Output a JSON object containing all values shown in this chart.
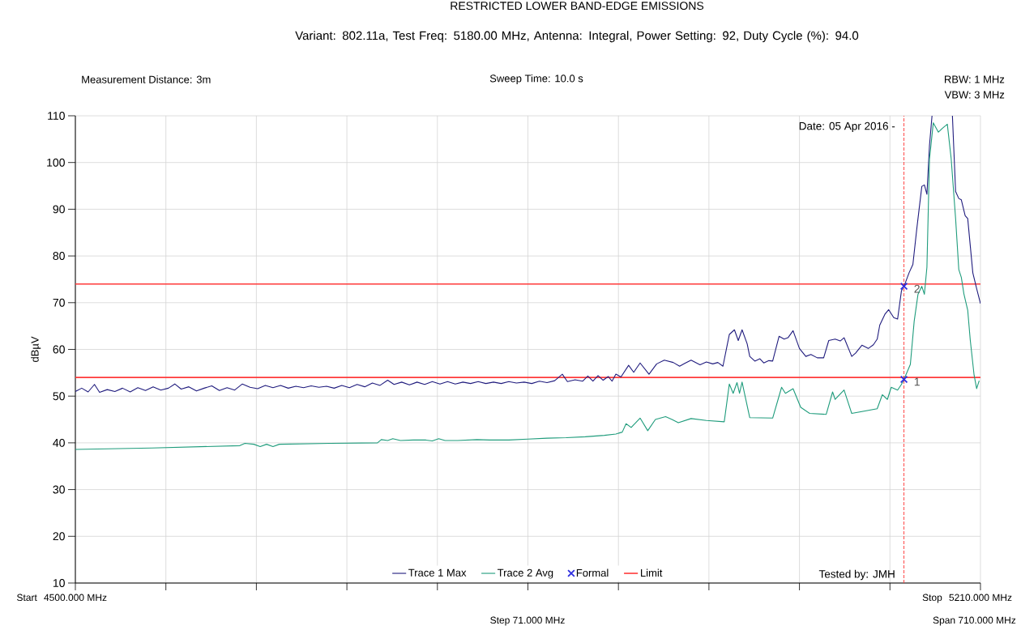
{
  "chart_data": {
    "type": "line",
    "title": "RESTRICTED LOWER BAND-EDGE EMISSIONS",
    "subtitle": "Variant: 802.11a, Test Freq: 5180.00 MHz, Antenna: Integral, Power Setting: 92, Duty Cycle (%): 94.0",
    "ylabel": "dBµV",
    "xlim": [
      4500,
      5210
    ],
    "ylim": [
      10,
      110
    ],
    "xticks": [
      {
        "value": 4500,
        "label": "4500.000 MHz"
      },
      {
        "value": 4571,
        "label": null
      },
      {
        "value": 4642,
        "label": null
      },
      {
        "value": 4713,
        "label": null
      },
      {
        "value": 4784,
        "label": null
      },
      {
        "value": 4855,
        "label": null
      },
      {
        "value": 4926,
        "label": null
      },
      {
        "value": 4997,
        "label": null
      },
      {
        "value": 5068,
        "label": null
      },
      {
        "value": 5139,
        "label": null
      },
      {
        "value": 5210,
        "label": "5210.000 MHz"
      }
    ],
    "yticks": [
      10,
      20,
      30,
      40,
      50,
      60,
      70,
      80,
      90,
      100,
      110
    ],
    "grid": true,
    "legend": "bottom",
    "series": [
      {
        "name": "Trace 1 Max",
        "color": "#201c7e",
        "x": [
          4500,
          4505,
          4510,
          4515,
          4519,
          4525,
          4531,
          4537,
          4543,
          4549,
          4555,
          4561,
          4567,
          4573,
          4578,
          4583,
          4589,
          4595,
          4601,
          4607,
          4613,
          4619,
          4625,
          4631,
          4637,
          4643,
          4649,
          4655,
          4661,
          4667,
          4673,
          4679,
          4685,
          4691,
          4697,
          4703,
          4709,
          4715,
          4721,
          4727,
          4733,
          4739,
          4745,
          4750,
          4756,
          4762,
          4768,
          4774,
          4780,
          4786,
          4792,
          4798,
          4804,
          4810,
          4816,
          4822,
          4828,
          4834,
          4840,
          4846,
          4852,
          4858,
          4864,
          4870,
          4876,
          4882,
          4886,
          4892,
          4898,
          4902,
          4906,
          4910,
          4914,
          4918,
          4921,
          4924,
          4928,
          4934,
          4938,
          4943,
          4950,
          4956,
          4962,
          4969,
          4974,
          4978,
          4983,
          4990,
          4995,
          5000,
          5004,
          5008,
          5011,
          5013,
          5017,
          5020,
          5023,
          5027,
          5029,
          5033,
          5037,
          5040,
          5044,
          5047,
          5052,
          5056,
          5059,
          5063,
          5068,
          5073,
          5077,
          5082,
          5087,
          5091,
          5096,
          5100,
          5103,
          5109,
          5112,
          5117,
          5122,
          5126,
          5129,
          5131,
          5135,
          5138,
          5142,
          5145,
          5148,
          5150,
          5154,
          5157,
          5160,
          5162,
          5164,
          5166,
          5168,
          5170,
          5172,
          5180,
          5188,
          5190.5,
          5193,
          5195,
          5198,
          5200,
          5202,
          5204,
          5207,
          5210
        ],
        "values": [
          51.0,
          51.7,
          50.9,
          52.5,
          50.8,
          51.4,
          51.0,
          51.7,
          50.9,
          51.8,
          51.2,
          52.0,
          51.3,
          51.7,
          52.6,
          51.5,
          52.0,
          51.1,
          51.7,
          52.2,
          51.2,
          51.8,
          51.3,
          52.6,
          51.9,
          51.6,
          52.3,
          51.8,
          52.3,
          51.7,
          52.1,
          51.8,
          52.2,
          51.9,
          52.1,
          51.7,
          52.3,
          51.8,
          52.5,
          52.0,
          52.8,
          52.3,
          53.4,
          52.5,
          53.0,
          52.4,
          53.0,
          52.5,
          53.1,
          52.6,
          53.1,
          52.6,
          53.0,
          52.7,
          53.1,
          52.7,
          53.0,
          52.7,
          53.1,
          52.8,
          53.0,
          52.7,
          53.2,
          52.9,
          53.3,
          54.7,
          53.1,
          53.5,
          53.2,
          54.3,
          53.2,
          54.4,
          53.4,
          54.2,
          53.2,
          54.7,
          54.1,
          56.6,
          55.1,
          57.1,
          54.7,
          56.9,
          57.7,
          57.2,
          56.4,
          57.0,
          57.7,
          56.7,
          57.3,
          56.9,
          57.2,
          56.4,
          60.5,
          63.2,
          64.2,
          61.9,
          64.2,
          61.2,
          58.5,
          57.5,
          58.0,
          57.1,
          57.6,
          57.5,
          62.8,
          62.2,
          62.5,
          64.0,
          60.2,
          58.5,
          58.9,
          58.2,
          58.2,
          61.9,
          62.2,
          61.8,
          62.5,
          58.5,
          59.2,
          60.9,
          60.2,
          61.0,
          62.2,
          65.2,
          67.5,
          68.5,
          66.8,
          66.5,
          72.5,
          73.5,
          76.4,
          78.2,
          85.7,
          90.3,
          94.9,
          95.2,
          93.2,
          103.6,
          110,
          null,
          110,
          93.8,
          92.3,
          92.0,
          88.6,
          88.0,
          82.2,
          76.4,
          73.0,
          69.8
        ]
      },
      {
        "name": "Trace 2 Avg",
        "color": "#1f9c7c",
        "x": [
          4500,
          4560,
          4629,
          4633,
          4640,
          4645,
          4650,
          4655,
          4660,
          4700,
          4737,
          4740,
          4745,
          4749,
          4755,
          4765,
          4775,
          4780,
          4785,
          4790,
          4800,
          4815,
          4825,
          4840,
          4855,
          4870,
          4885,
          4900,
          4915,
          4924,
          4929,
          4932,
          4936,
          4943,
          4949,
          4955,
          4963,
          4968,
          4973,
          4983,
          4995,
          5009,
          5013,
          5016,
          5019,
          5021,
          5023,
          5029,
          5047,
          5054,
          5057,
          5063,
          5069,
          5076,
          5089,
          5094,
          5096,
          5103,
          5109,
          5129,
          5133,
          5137,
          5140,
          5145,
          5148,
          5150,
          5155,
          5158,
          5161,
          5164,
          5166,
          5168,
          5170,
          5173,
          5177,
          5180,
          5184,
          5187,
          5190.5,
          5193,
          5195,
          5197,
          5200,
          5202,
          5205,
          5207,
          5209
        ],
        "values": [
          38.6,
          38.9,
          39.4,
          39.9,
          39.7,
          39.2,
          39.7,
          39.2,
          39.7,
          39.9,
          40.0,
          40.7,
          40.5,
          40.9,
          40.5,
          40.6,
          40.6,
          40.4,
          40.9,
          40.5,
          40.5,
          40.7,
          40.6,
          40.6,
          40.8,
          41.0,
          41.1,
          41.3,
          41.6,
          41.9,
          42.3,
          44.1,
          43.3,
          45.3,
          42.6,
          45.0,
          45.6,
          45.0,
          44.3,
          45.2,
          44.8,
          44.5,
          52.6,
          50.6,
          52.9,
          50.6,
          53.0,
          45.4,
          45.3,
          51.9,
          50.6,
          51.6,
          47.6,
          46.3,
          46.1,
          50.9,
          49.3,
          51.3,
          46.3,
          47.3,
          50.3,
          49.3,
          51.9,
          51.3,
          52.5,
          53.6,
          56.8,
          66.0,
          71.8,
          73.5,
          71.8,
          77.6,
          100.7,
          108.5,
          106.5,
          107.3,
          108.2,
          100.9,
          88.0,
          77.1,
          75.4,
          71.9,
          68.4,
          62.0,
          54.5,
          51.6,
          53.3
        ]
      },
      {
        "name": "Formal",
        "type": "scatter",
        "color": "#2e2ee0",
        "marker": "cross",
        "x": [
          5150,
          5150
        ],
        "values": [
          53.6,
          73.5
        ]
      }
    ],
    "ref_lines": [
      {
        "axis": "y",
        "value": 74,
        "label": "Limit",
        "color": "#ff3a3a"
      },
      {
        "axis": "y",
        "value": 54,
        "color": "#ff3a3a"
      },
      {
        "axis": "x",
        "value": 5150,
        "color": "#ff3a3a",
        "line_style": "dashed"
      }
    ],
    "annotations": [
      "Measurement Distance: 3m",
      "Sweep Time: 10.0 s",
      "RBW: 1 MHz",
      "VBW: 3 MHz",
      "Date: 05 Apr 2016 -",
      "Tested by: JMH",
      "Start",
      "Stop",
      "Step 71.000 MHz",
      "Span 710.000 MHz",
      {
        "text": "1",
        "x": 5150,
        "y": 53.6
      },
      {
        "text": "2",
        "x": 5150,
        "y": 73.5
      }
    ]
  }
}
